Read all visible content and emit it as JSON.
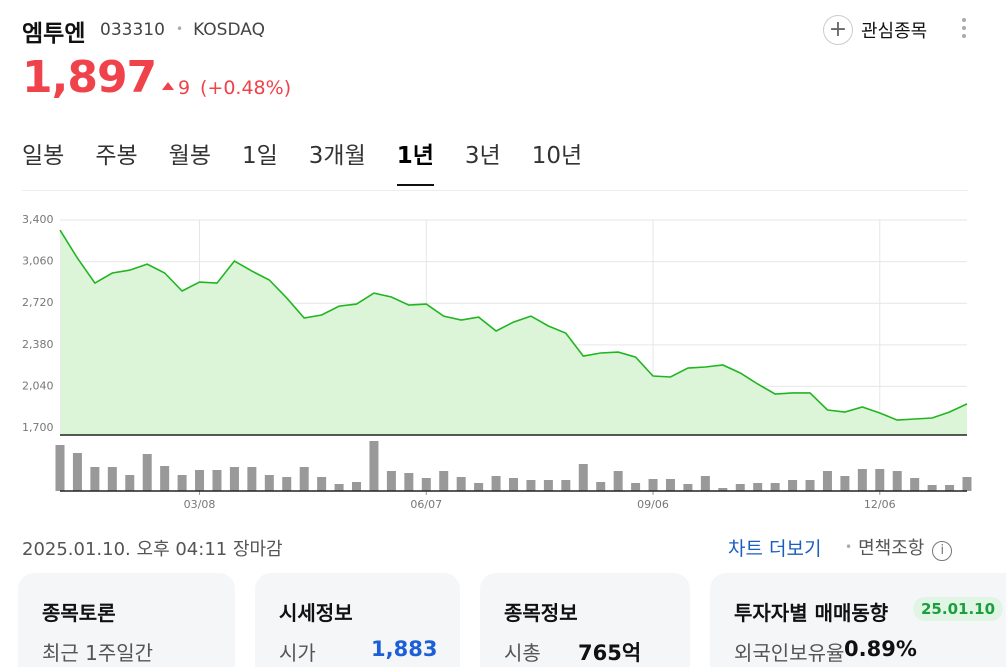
{
  "header": {
    "name": "엠투엔",
    "code": "033310",
    "market": "KOSDAQ",
    "watch": "관심종목",
    "price": "1,897",
    "change": "9",
    "change_pct": "(+0.48%)",
    "color": "#f0424a"
  },
  "tabs": {
    "items": [
      "일봉",
      "주봉",
      "월봉",
      "1일",
      "3개월",
      "1년",
      "3년",
      "10년"
    ],
    "active": 5
  },
  "chart_data": {
    "type": "area",
    "color": "#22b522",
    "fill": "#dcf4d8",
    "grid": true,
    "ylim": [
      1643,
      3523
    ],
    "yticks": [
      {
        "value": 1700,
        "label": "1,700"
      },
      {
        "value": 2040,
        "label": "2,040"
      },
      {
        "value": 2380,
        "label": "2,380"
      },
      {
        "value": 2720,
        "label": "2,720"
      },
      {
        "value": 3060,
        "label": "3,060"
      },
      {
        "value": 3400,
        "label": "3,400"
      }
    ],
    "categories": [
      null,
      null,
      null,
      null,
      null,
      null,
      null,
      null,
      "03/08",
      null,
      null,
      null,
      null,
      null,
      null,
      null,
      null,
      null,
      null,
      null,
      null,
      "06/07",
      null,
      null,
      null,
      null,
      null,
      null,
      null,
      null,
      null,
      null,
      null,
      null,
      "09/06",
      null,
      null,
      null,
      null,
      null,
      null,
      null,
      null,
      null,
      null,
      null,
      null,
      "12/06",
      null,
      null,
      null,
      null,
      null
    ],
    "values": [
      3318,
      3089,
      2885,
      2967,
      2991,
      3040,
      2967,
      2820,
      2893,
      2885,
      3065,
      2983,
      2910,
      2762,
      2599,
      2624,
      2697,
      2713,
      2803,
      2771,
      2705,
      2713,
      2615,
      2583,
      2607,
      2493,
      2566,
      2615,
      2534,
      2476,
      2288,
      2313,
      2321,
      2280,
      2125,
      2117,
      2190,
      2199,
      2215,
      2150,
      2060,
      1978,
      1987,
      1987,
      1847,
      1831,
      1872,
      1823,
      1765,
      1774,
      1782,
      1831,
      1897
    ],
    "volume": {
      "type": "bar",
      "color": "#999999",
      "values": [
        46,
        38,
        24,
        24,
        16,
        37,
        25,
        16,
        21,
        21,
        24,
        24,
        16,
        14,
        24,
        14,
        7,
        9,
        50,
        20,
        18,
        13,
        20,
        14,
        8,
        15,
        13,
        11,
        11,
        11,
        27,
        9,
        20,
        8,
        12,
        12,
        7,
        15,
        3,
        7,
        8,
        8,
        11,
        11,
        20,
        15,
        22,
        22,
        20,
        13,
        6,
        6,
        14
      ]
    }
  },
  "footer": {
    "timestamp": "2025.01.10. 오후 04:11 장마감",
    "more": "차트 더보기",
    "disclaimer": "면책조항"
  },
  "cards": [
    {
      "title": "종목토론",
      "label": "최근 1주일간"
    },
    {
      "title": "시세정보",
      "label": "시가",
      "value": "1,883",
      "color": "#1d5fd6"
    },
    {
      "title": "종목정보",
      "label": "시총",
      "value": "765억",
      "color": "#111111"
    },
    {
      "title": "투자자별 매매동향",
      "badge": "25.01.10",
      "label": "외국인보유율",
      "value": "0.89%",
      "color": "#111111"
    }
  ]
}
